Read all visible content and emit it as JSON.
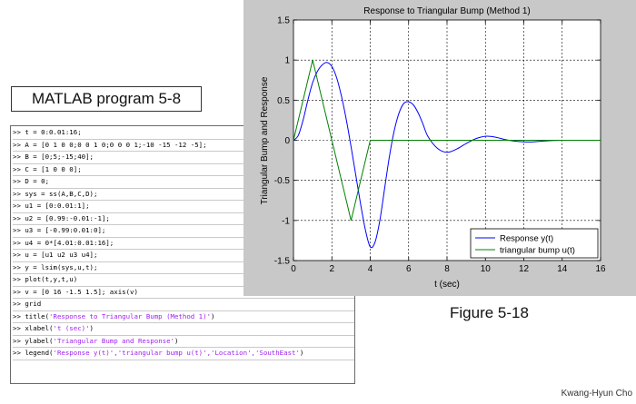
{
  "program_title": "MATLAB program 5-8",
  "figure_caption": "Figure 5-18",
  "author": "Kwang-Hyun Cho",
  "code_lines": [
    {
      "pre": ">> t = 0:0.01:16;"
    },
    {
      "pre": ">> A = [0 1 0 0;0 0 1 0;0 0 0 1;-10 -15 -12 -5];"
    },
    {
      "pre": ">> B = [0;5;-15;40];"
    },
    {
      "pre": ">> C = [1 0 0 0];"
    },
    {
      "pre": ">> D = 0;"
    },
    {
      "pre": ">> sys = ss(A,B,C,D);"
    },
    {
      "pre": ">> u1 = [0:0.01:1];"
    },
    {
      "pre": ">> u2 = [0.99:-0.01:-1];"
    },
    {
      "pre": ">> u3 = [-0.99:0.01:0];"
    },
    {
      "pre": ">> u4 = 0*[4.01:0.01:16];"
    },
    {
      "pre": ">> u = [u1 u2 u3 u4];"
    },
    {
      "pre": ">> y = lsim(sys,u,t);"
    },
    {
      "pre": ">> plot(t,y,t,u)"
    },
    {
      "pre": ">> v = [0 16 -1.5 1.5]; axis(v)"
    },
    {
      "pre": ">> grid"
    },
    {
      "pre": ">> title(",
      "str": "'Response to Triangular Bump (Method 1)'",
      "post": ")"
    },
    {
      "pre": ">> xlabel(",
      "str": "'t (sec)'",
      "post": ")"
    },
    {
      "pre": ">> ylabel(",
      "str": "'Triangular Bump and Response'",
      "post": ")"
    },
    {
      "pre": ">> legend(",
      "str": "'Response y(t)','triangular bump u(t)','Location','SouthEast'",
      "post": ")"
    }
  ],
  "chart_data": {
    "type": "line",
    "title": "Response to Triangular Bump (Method 1)",
    "xlabel": "t (sec)",
    "ylabel": "Triangular Bump and Response",
    "xlim": [
      0,
      16
    ],
    "ylim": [
      -1.5,
      1.5
    ],
    "xticks": [
      "0",
      "2",
      "4",
      "6",
      "8",
      "10",
      "12",
      "14",
      "16"
    ],
    "yticks": [
      "1.5",
      "1",
      "0.5",
      "0",
      "-0.5",
      "-1",
      "-1.5"
    ],
    "grid": true,
    "legend_position": "bottom-right",
    "series": [
      {
        "name": "Response y(t)",
        "color": "#0000ff",
        "x": [
          0,
          0.25,
          0.5,
          0.75,
          1.0,
          1.25,
          1.5,
          1.75,
          2.0,
          2.25,
          2.5,
          2.75,
          3.0,
          3.25,
          3.5,
          3.75,
          4.0,
          4.25,
          4.5,
          4.75,
          5.0,
          5.25,
          5.5,
          5.75,
          6.0,
          6.25,
          6.5,
          6.75,
          7.0,
          7.5,
          8.0,
          8.5,
          9.0,
          9.5,
          10.0,
          10.5,
          11.0,
          11.5,
          12.0,
          12.5,
          13.0,
          14.0,
          15.0,
          16.0
        ],
        "y": [
          0,
          0.06,
          0.25,
          0.5,
          0.72,
          0.86,
          0.94,
          0.97,
          0.92,
          0.78,
          0.55,
          0.26,
          -0.08,
          -0.44,
          -0.8,
          -1.12,
          -1.33,
          -1.27,
          -1.0,
          -0.6,
          -0.2,
          0.12,
          0.34,
          0.46,
          0.48,
          0.44,
          0.34,
          0.2,
          0.05,
          -0.1,
          -0.15,
          -0.11,
          -0.04,
          0.02,
          0.05,
          0.04,
          0.01,
          -0.01,
          -0.02,
          -0.02,
          -0.01,
          0.0,
          0.0,
          0.0
        ]
      },
      {
        "name": "triangular bump u(t)",
        "color": "#008000",
        "x": [
          0,
          1,
          3,
          4,
          16
        ],
        "y": [
          0,
          1,
          -1,
          0,
          0
        ]
      }
    ]
  }
}
